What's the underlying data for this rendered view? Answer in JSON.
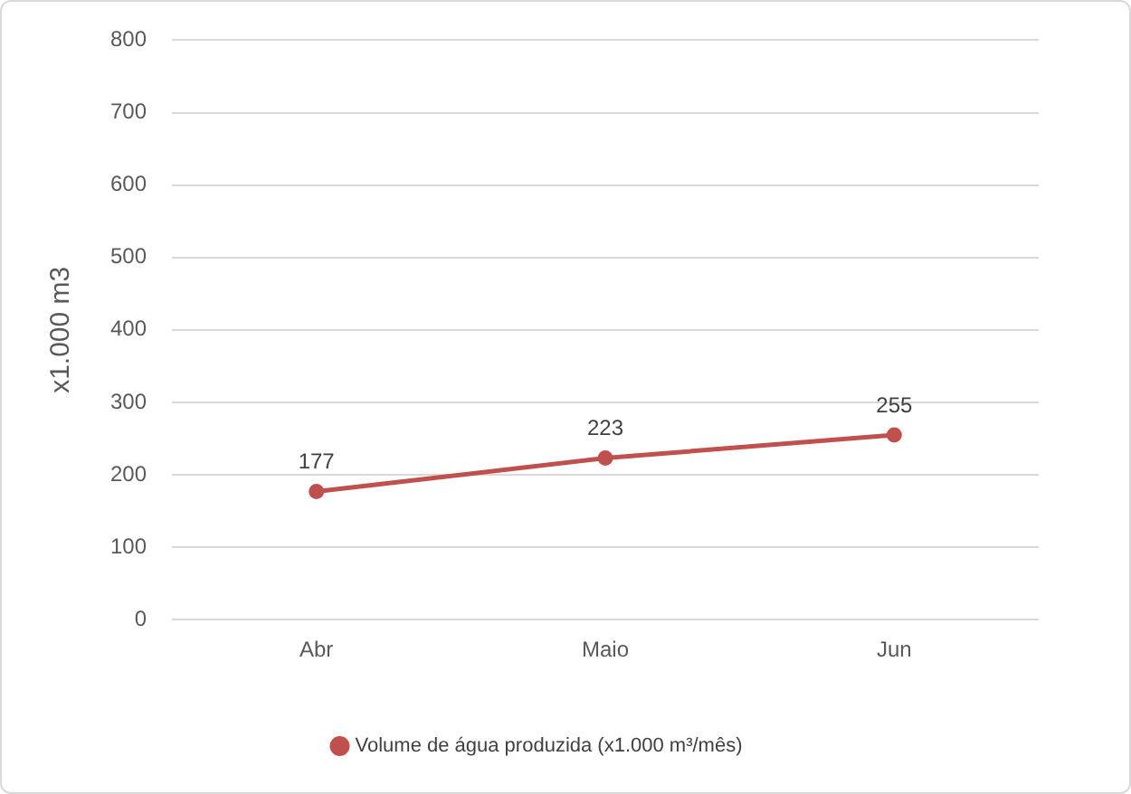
{
  "chart_data": {
    "type": "line",
    "ylabel": "x1.000 m3",
    "categories": [
      "Abr",
      "Maio",
      "Jun"
    ],
    "series": [
      {
        "name": "Volume de água produzida (x1.000 m³/mês)",
        "color": "#c0504d",
        "values": [
          177,
          223,
          255
        ]
      }
    ],
    "ylim": [
      0,
      800
    ],
    "yticks": [
      0,
      100,
      200,
      300,
      400,
      500,
      600,
      700,
      800
    ],
    "grid": "y",
    "legend": "bottom",
    "marker": "circle",
    "line_style": "solid",
    "data_labels": true
  }
}
